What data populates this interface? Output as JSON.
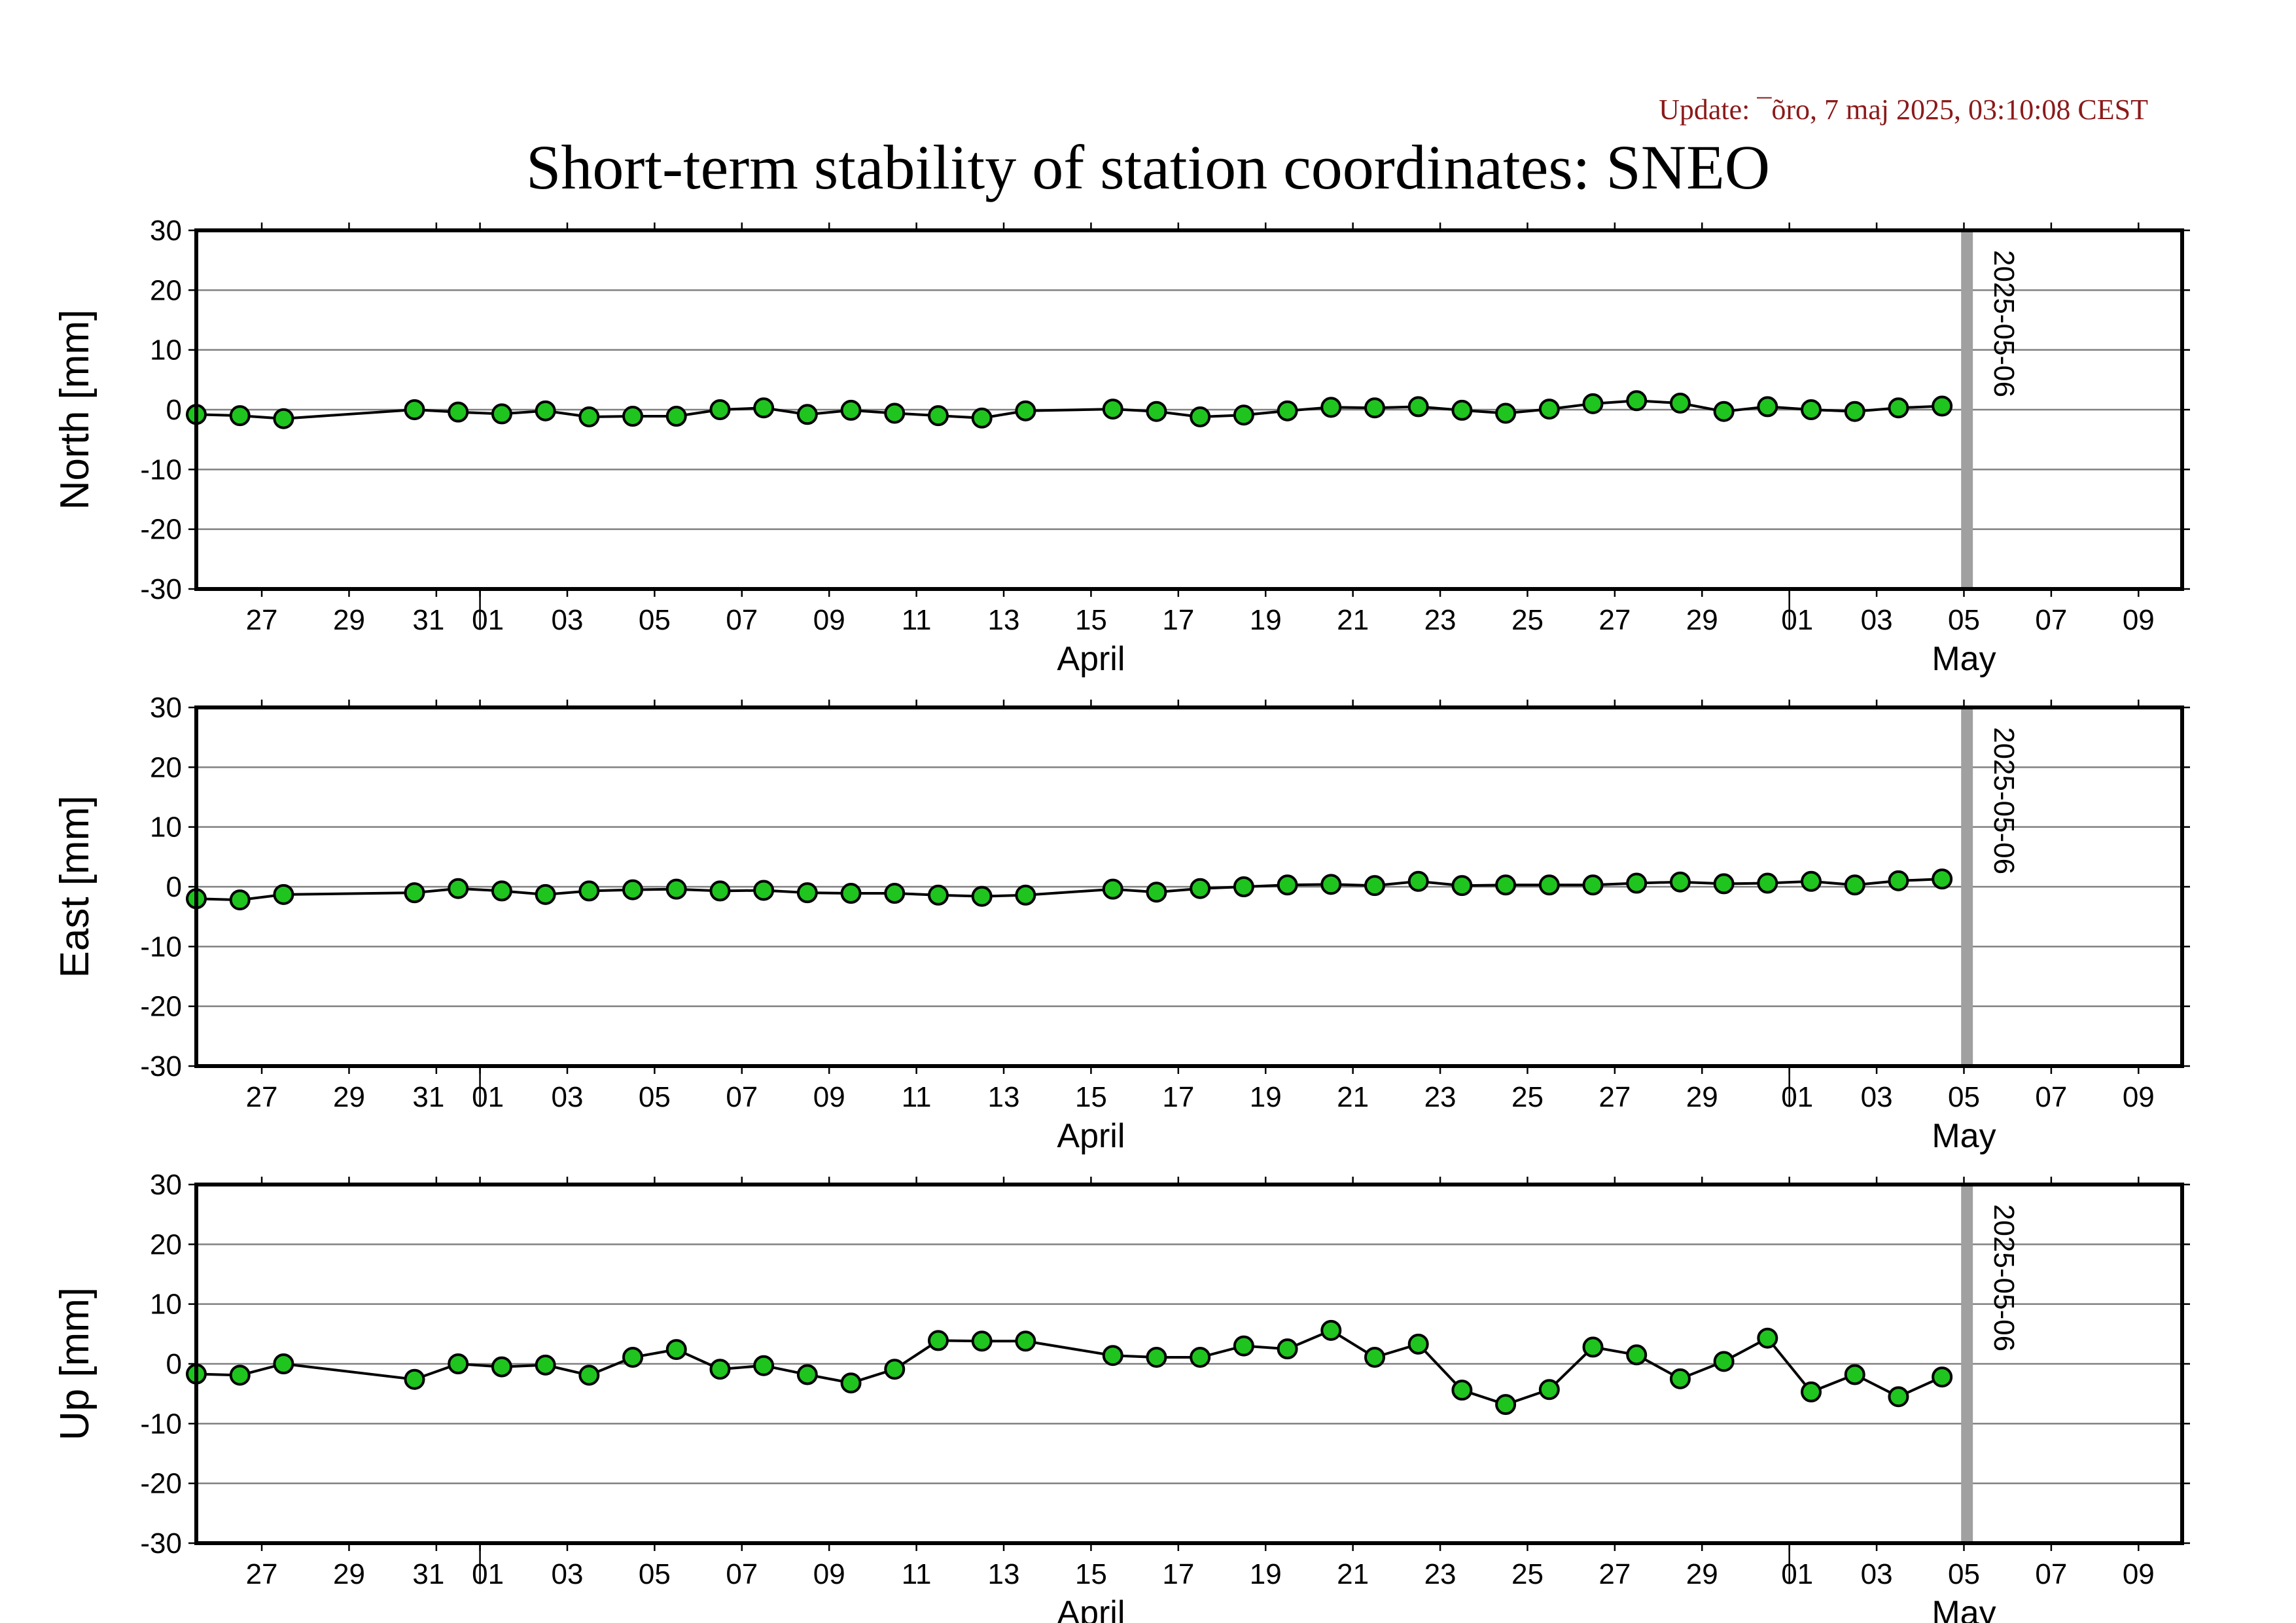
{
  "header": {
    "update": "Update: ¯õro, 7 maj 2025, 03:10:08 CEST",
    "title": "Short-term stability of station coordinates: SNEO"
  },
  "colors": {
    "point_fill": "#1fc41f",
    "marker_line": "#a0a0a0",
    "update_text": "#8b1a1a"
  },
  "x_axis": {
    "range": [
      "2025-03-25T12:00",
      "2025-05-10T00:00"
    ],
    "day_ticks": [
      {
        "date": "2025-03-27",
        "label": "27"
      },
      {
        "date": "2025-03-29",
        "label": "29"
      },
      {
        "date": "2025-03-31",
        "label": "31"
      },
      {
        "date": "2025-04-01",
        "label": "01"
      },
      {
        "date": "2025-04-03",
        "label": "03"
      },
      {
        "date": "2025-04-05",
        "label": "05"
      },
      {
        "date": "2025-04-07",
        "label": "07"
      },
      {
        "date": "2025-04-09",
        "label": "09"
      },
      {
        "date": "2025-04-11",
        "label": "11"
      },
      {
        "date": "2025-04-13",
        "label": "13"
      },
      {
        "date": "2025-04-15",
        "label": "15"
      },
      {
        "date": "2025-04-17",
        "label": "17"
      },
      {
        "date": "2025-04-19",
        "label": "19"
      },
      {
        "date": "2025-04-21",
        "label": "21"
      },
      {
        "date": "2025-04-23",
        "label": "23"
      },
      {
        "date": "2025-04-25",
        "label": "25"
      },
      {
        "date": "2025-04-27",
        "label": "27"
      },
      {
        "date": "2025-04-29",
        "label": "29"
      },
      {
        "date": "2025-05-01",
        "label": "01"
      },
      {
        "date": "2025-05-03",
        "label": "03"
      },
      {
        "date": "2025-05-05",
        "label": "05"
      },
      {
        "date": "2025-05-07",
        "label": "07"
      },
      {
        "date": "2025-05-09",
        "label": "09"
      }
    ],
    "month_labels": [
      {
        "date": "2025-04-15",
        "label": "April"
      },
      {
        "date": "2025-05-05",
        "label": "May"
      }
    ],
    "month_boundaries": [
      "2025-04-01",
      "2025-05-01"
    ]
  },
  "chart_data": [
    {
      "type": "line",
      "ylabel": "North [mm]",
      "ylim": [
        -30,
        30
      ],
      "yticks": [
        30,
        20,
        10,
        0,
        -10,
        -20,
        -30
      ],
      "grid": true,
      "marker": {
        "date": "2025-05-06",
        "label": "2025-05-06"
      },
      "points": [
        [
          "2025-03-25T12:00",
          -0.8
        ],
        [
          "2025-03-26T12:00",
          -1.0
        ],
        [
          "2025-03-27T12:00",
          -1.5
        ],
        [
          "2025-03-30T12:00",
          0.0
        ],
        [
          "2025-03-31T12:00",
          -0.4
        ],
        [
          "2025-04-01T12:00",
          -0.7
        ],
        [
          "2025-04-02T12:00",
          -0.2
        ],
        [
          "2025-04-03T12:00",
          -1.2
        ],
        [
          "2025-04-04T12:00",
          -1.1
        ],
        [
          "2025-04-05T12:00",
          -1.1
        ],
        [
          "2025-04-06T12:00",
          0.0
        ],
        [
          "2025-04-07T12:00",
          0.3
        ],
        [
          "2025-04-08T12:00",
          -0.8
        ],
        [
          "2025-04-09T12:00",
          -0.1
        ],
        [
          "2025-04-10T12:00",
          -0.6
        ],
        [
          "2025-04-11T12:00",
          -1.0
        ],
        [
          "2025-04-12T12:00",
          -1.4
        ],
        [
          "2025-04-13T12:00",
          -0.2
        ],
        [
          "2025-04-15T12:00",
          0.1
        ],
        [
          "2025-04-16T12:00",
          -0.3
        ],
        [
          "2025-04-17T12:00",
          -1.2
        ],
        [
          "2025-04-18T12:00",
          -0.9
        ],
        [
          "2025-04-19T12:00",
          -0.2
        ],
        [
          "2025-04-20T12:00",
          0.4
        ],
        [
          "2025-04-21T12:00",
          0.3
        ],
        [
          "2025-04-22T12:00",
          0.5
        ],
        [
          "2025-04-23T12:00",
          -0.1
        ],
        [
          "2025-04-24T12:00",
          -0.6
        ],
        [
          "2025-04-25T12:00",
          0.1
        ],
        [
          "2025-04-26T12:00",
          1.0
        ],
        [
          "2025-04-27T12:00",
          1.5
        ],
        [
          "2025-04-28T12:00",
          1.1
        ],
        [
          "2025-04-29T12:00",
          -0.3
        ],
        [
          "2025-04-30T12:00",
          0.5
        ],
        [
          "2025-05-01T12:00",
          0.0
        ],
        [
          "2025-05-02T12:00",
          -0.3
        ],
        [
          "2025-05-03T12:00",
          0.3
        ],
        [
          "2025-05-04T12:00",
          0.6
        ]
      ]
    },
    {
      "type": "line",
      "ylabel": "East [mm]",
      "ylim": [
        -30,
        30
      ],
      "yticks": [
        30,
        20,
        10,
        0,
        -10,
        -20,
        -30
      ],
      "grid": true,
      "marker": {
        "date": "2025-05-06",
        "label": "2025-05-06"
      },
      "points": [
        [
          "2025-03-25T12:00",
          -2.0
        ],
        [
          "2025-03-26T12:00",
          -2.2
        ],
        [
          "2025-03-27T12:00",
          -1.3
        ],
        [
          "2025-03-30T12:00",
          -1.0
        ],
        [
          "2025-03-31T12:00",
          -0.3
        ],
        [
          "2025-04-01T12:00",
          -0.7
        ],
        [
          "2025-04-02T12:00",
          -1.3
        ],
        [
          "2025-04-03T12:00",
          -0.7
        ],
        [
          "2025-04-04T12:00",
          -0.5
        ],
        [
          "2025-04-05T12:00",
          -0.4
        ],
        [
          "2025-04-06T12:00",
          -0.7
        ],
        [
          "2025-04-07T12:00",
          -0.6
        ],
        [
          "2025-04-08T12:00",
          -1.0
        ],
        [
          "2025-04-09T12:00",
          -1.1
        ],
        [
          "2025-04-10T12:00",
          -1.1
        ],
        [
          "2025-04-11T12:00",
          -1.4
        ],
        [
          "2025-04-12T12:00",
          -1.6
        ],
        [
          "2025-04-13T12:00",
          -1.4
        ],
        [
          "2025-04-15T12:00",
          -0.4
        ],
        [
          "2025-04-16T12:00",
          -0.9
        ],
        [
          "2025-04-17T12:00",
          -0.3
        ],
        [
          "2025-04-18T12:00",
          0.0
        ],
        [
          "2025-04-19T12:00",
          0.3
        ],
        [
          "2025-04-20T12:00",
          0.4
        ],
        [
          "2025-04-21T12:00",
          0.2
        ],
        [
          "2025-04-22T12:00",
          0.9
        ],
        [
          "2025-04-23T12:00",
          0.2
        ],
        [
          "2025-04-24T12:00",
          0.3
        ],
        [
          "2025-04-25T12:00",
          0.3
        ],
        [
          "2025-04-26T12:00",
          0.3
        ],
        [
          "2025-04-27T12:00",
          0.6
        ],
        [
          "2025-04-28T12:00",
          0.8
        ],
        [
          "2025-04-29T12:00",
          0.5
        ],
        [
          "2025-04-30T12:00",
          0.6
        ],
        [
          "2025-05-01T12:00",
          0.9
        ],
        [
          "2025-05-02T12:00",
          0.3
        ],
        [
          "2025-05-03T12:00",
          1.0
        ],
        [
          "2025-05-04T12:00",
          1.3
        ]
      ]
    },
    {
      "type": "line",
      "ylabel": "Up [mm]",
      "ylim": [
        -30,
        30
      ],
      "yticks": [
        30,
        20,
        10,
        0,
        -10,
        -20,
        -30
      ],
      "grid": true,
      "marker": {
        "date": "2025-05-06",
        "label": "2025-05-06"
      },
      "points": [
        [
          "2025-03-25T12:00",
          -1.7
        ],
        [
          "2025-03-26T12:00",
          -1.9
        ],
        [
          "2025-03-27T12:00",
          0.0
        ],
        [
          "2025-03-30T12:00",
          -2.6
        ],
        [
          "2025-03-31T12:00",
          0.0
        ],
        [
          "2025-04-01T12:00",
          -0.5
        ],
        [
          "2025-04-02T12:00",
          -0.2
        ],
        [
          "2025-04-03T12:00",
          -1.9
        ],
        [
          "2025-04-04T12:00",
          1.1
        ],
        [
          "2025-04-05T12:00",
          2.4
        ],
        [
          "2025-04-06T12:00",
          -0.9
        ],
        [
          "2025-04-07T12:00",
          -0.3
        ],
        [
          "2025-04-08T12:00",
          -1.8
        ],
        [
          "2025-04-09T12:00",
          -3.2
        ],
        [
          "2025-04-10T12:00",
          -0.9
        ],
        [
          "2025-04-11T12:00",
          3.9
        ],
        [
          "2025-04-12T12:00",
          3.8
        ],
        [
          "2025-04-13T12:00",
          3.8
        ],
        [
          "2025-04-15T12:00",
          1.4
        ],
        [
          "2025-04-16T12:00",
          1.1
        ],
        [
          "2025-04-17T12:00",
          1.1
        ],
        [
          "2025-04-18T12:00",
          3.0
        ],
        [
          "2025-04-19T12:00",
          2.5
        ],
        [
          "2025-04-20T12:00",
          5.6
        ],
        [
          "2025-04-21T12:00",
          1.1
        ],
        [
          "2025-04-22T12:00",
          3.3
        ],
        [
          "2025-04-23T12:00",
          -4.4
        ],
        [
          "2025-04-24T12:00",
          -6.8
        ],
        [
          "2025-04-25T12:00",
          -4.3
        ],
        [
          "2025-04-26T12:00",
          2.8
        ],
        [
          "2025-04-27T12:00",
          1.5
        ],
        [
          "2025-04-28T12:00",
          -2.5
        ],
        [
          "2025-04-29T12:00",
          0.4
        ],
        [
          "2025-04-30T12:00",
          4.3
        ],
        [
          "2025-05-01T12:00",
          -4.7
        ],
        [
          "2025-05-02T12:00",
          -1.8
        ],
        [
          "2025-05-03T12:00",
          -5.5
        ],
        [
          "2025-05-04T12:00",
          -2.2
        ]
      ]
    }
  ]
}
